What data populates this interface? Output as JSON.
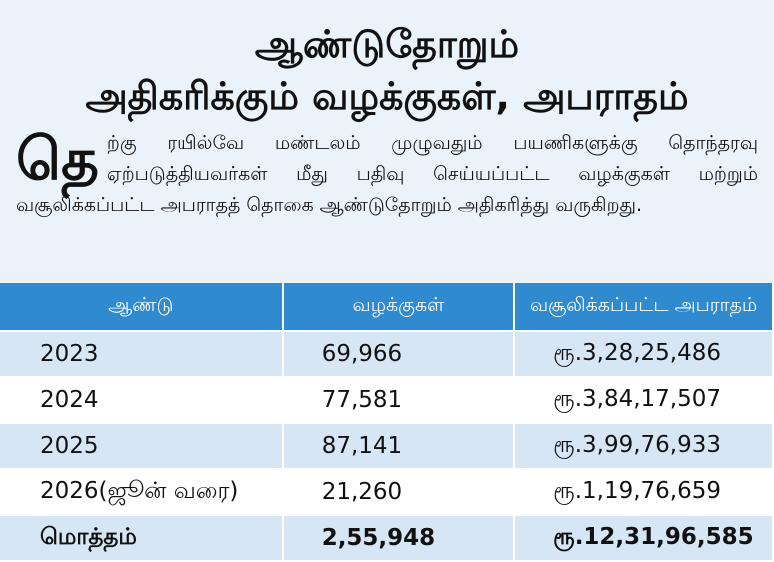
{
  "header": {
    "title_lines": [
      "ஆண்டுதோறும்",
      "அதிகரிக்கும் வழக்குகள், அபராதம்"
    ]
  },
  "intro": {
    "drop_cap": "தெ",
    "text": "ற்கு ரயில்வே மண்டலம் முழுவதும் பயணிகளுக்கு தொந்தரவு ஏற்படுத்தியவர்கள் மீது பதிவு செய்யப்பட்ட வழக்குகள் மற்றும் வசூலிக்கப்பட்ட அபராதத் தொகை ஆண்டுதோறும் அதிகரித்து வருகிறது."
  },
  "table": {
    "columns": [
      "ஆண்டு",
      "வழக்குகள்",
      "வசூலிக்கப்பட்ட அபராதம்"
    ],
    "rows": [
      [
        "2023",
        "69,966",
        "ரூ.3,28,25,486"
      ],
      [
        "2024",
        "77,581",
        "ரூ.3,84,17,507"
      ],
      [
        "2025",
        "87,141",
        "ரூ.3,99,76,933"
      ],
      [
        "2026(ஜூன் வரை)",
        "21,260",
        "ரூ.1,19,76,659"
      ]
    ],
    "total": [
      "மொத்தம்",
      "2,55,948",
      "ரூ.12,31,96,585"
    ]
  }
}
